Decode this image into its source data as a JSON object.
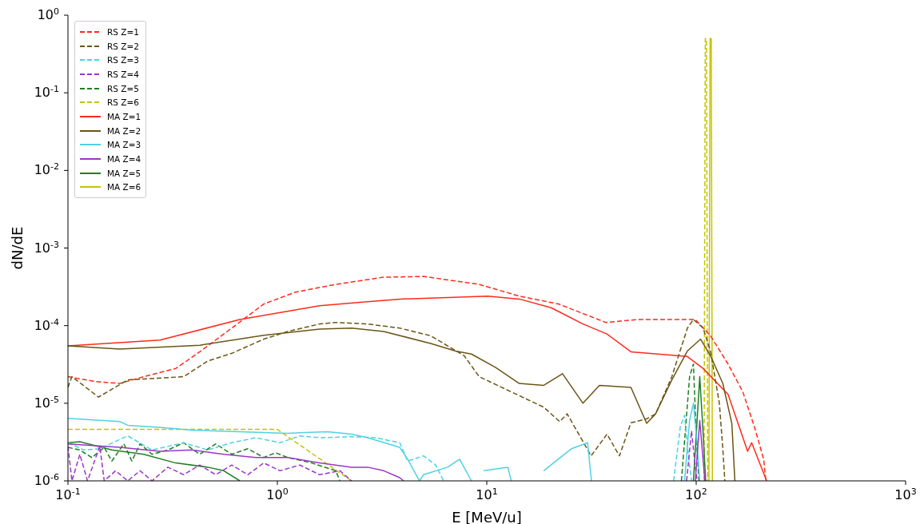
{
  "chart_data": {
    "type": "line",
    "xlabel": "E [MeV/u]",
    "ylabel": "dN/dE",
    "log": "xy",
    "grid": false,
    "legend": "top left",
    "marker": "none",
    "xlim": [
      0.1,
      1000
    ],
    "ylim": [
      1e-06,
      1
    ],
    "xticks": [
      {
        "value": 0.1,
        "label": "10$^{-1}$"
      },
      {
        "value": 1,
        "label": "10$^{0}$"
      },
      {
        "value": 10,
        "label": "10$^{1}$"
      },
      {
        "value": 100,
        "label": "10$^{2}$"
      },
      {
        "value": 1000,
        "label": "10$^{3}$"
      }
    ],
    "yticks": [
      {
        "value": 1e-06,
        "label": "10$^{-6}$"
      },
      {
        "value": 1e-05,
        "label": "10$^{-5}$"
      },
      {
        "value": 0.0001,
        "label": "10$^{-4}$"
      },
      {
        "value": 0.001,
        "label": "10$^{-3}$"
      },
      {
        "value": 0.01,
        "label": "10$^{-2}$"
      },
      {
        "value": 0.1,
        "label": "10$^{-1}$"
      },
      {
        "value": 1,
        "label": "10$^{0}$"
      }
    ],
    "series": [
      {
        "name": "RS Z=1",
        "color": "#ff2a1a",
        "line_style": "dashed",
        "x": [
          0.1,
          0.136,
          0.177,
          0.23,
          0.327,
          0.426,
          0.606,
          0.861,
          1.22,
          1.9,
          3.2,
          5.0,
          9.2,
          14.3,
          22,
          37,
          53,
          99,
          117,
          142,
          167,
          190,
          210,
          215
        ],
        "values": [
          2.2e-05,
          1.9e-05,
          1.8e-05,
          2.2e-05,
          2.8e-05,
          4.6e-05,
          9.3e-05,
          0.00019,
          0.00027,
          0.00034,
          0.00042,
          0.00043,
          0.00034,
          0.00024,
          0.00019,
          0.00011,
          0.00012,
          0.00012,
          7.4e-05,
          3.2e-05,
          1.4e-05,
          4.9e-06,
          1.9e-06,
          1e-06
        ]
      },
      {
        "name": "RS Z=2",
        "color": "#6b5514",
        "line_style": "dashed",
        "x": [
          0.1,
          0.1045,
          0.14,
          0.193,
          0.357,
          0.465,
          0.606,
          0.861,
          1.12,
          1.59,
          1.9,
          2.7,
          3.84,
          5.4,
          7.8,
          9.2,
          13.1,
          18.7,
          22.3,
          24.2,
          31.5,
          37.5,
          43,
          48.8,
          58,
          64,
          76.5,
          90.8,
          97,
          108,
          117,
          129,
          134,
          137
        ],
        "values": [
          1.6e-05,
          2.2e-05,
          1.2e-05,
          2e-05,
          2.2e-05,
          3.5e-05,
          4.4e-05,
          6.7e-05,
          8.4e-05,
          0.000105,
          0.00011,
          0.000105,
          9.3e-05,
          7.4e-05,
          4.1e-05,
          2.2e-05,
          1.4e-05,
          8.9e-06,
          5.8e-06,
          7.3e-06,
          2.1e-06,
          4e-06,
          2.1e-06,
          5.6e-06,
          6.3e-06,
          7.3e-06,
          2.2e-05,
          9.3e-05,
          0.00012,
          9.3e-05,
          4.7e-05,
          1e-05,
          2.6e-06,
          1e-06
        ]
      },
      {
        "name": "RS Z=3",
        "color": "#4fd2e2",
        "line_style": "dashed",
        "x": [
          0.1,
          0.119,
          0.142,
          0.193,
          0.252,
          0.357,
          0.465,
          0.606,
          0.789,
          1.03,
          1.28,
          1.59,
          2.26,
          2.95,
          3.84,
          4.19,
          4.99,
          5.7,
          6.22,
          30,
          78,
          84,
          88,
          92,
          95
        ],
        "values": [
          3.1e-06,
          2.5e-06,
          2.6e-06,
          3.8e-06,
          2.5e-06,
          3.1e-06,
          2.5e-06,
          3.1e-06,
          3.6e-06,
          3.1e-06,
          3.8e-06,
          3.6e-06,
          3.7e-06,
          3.6e-06,
          3.1e-06,
          1.8e-06,
          2.1e-06,
          1.6e-06,
          1e-06,
          null,
          1e-06,
          5e-06,
          7e-06,
          2e-06,
          1e-06
        ]
      },
      {
        "name": "RS Z=4",
        "color": "#9a35c8",
        "line_style": "dashed",
        "x": [
          0.1,
          0.1045,
          0.114,
          0.124,
          0.142,
          0.149,
          0.169,
          0.193,
          0.221,
          0.252,
          0.3,
          0.357,
          0.426,
          0.508,
          0.606,
          0.722,
          0.861,
          1.03,
          1.28,
          1.59,
          1.99,
          2.26,
          30,
          90,
          95,
          99,
          101
        ],
        "values": [
          2.8e-06,
          1e-06,
          2.2e-06,
          1e-06,
          2.8e-06,
          1e-06,
          1.35e-06,
          1e-06,
          1.35e-06,
          1e-06,
          1.5e-06,
          1.2e-06,
          1.6e-06,
          1.2e-06,
          1.6e-06,
          1.2e-06,
          1.7e-06,
          1.35e-06,
          1.6e-06,
          1.2e-06,
          1.35e-06,
          1e-06,
          null,
          1e-06,
          4.4e-06,
          1.5e-06,
          1e-06
        ]
      },
      {
        "name": "RS Z=5",
        "color": "#1f7f1f",
        "line_style": "dashed",
        "x": [
          0.1,
          0.114,
          0.13,
          0.149,
          0.162,
          0.185,
          0.202,
          0.221,
          0.252,
          0.3,
          0.357,
          0.426,
          0.508,
          0.606,
          0.722,
          0.861,
          0.98,
          1.12,
          1.46,
          1.9,
          1.99,
          30,
          85,
          93,
          97,
          100,
          103
        ],
        "values": [
          2.7e-06,
          2.5e-06,
          2e-06,
          2.7e-06,
          1.8e-06,
          3e-06,
          1.8e-06,
          3e-06,
          2.2e-06,
          2.5e-06,
          3.1e-06,
          2.2e-06,
          3e-06,
          2.2e-06,
          2.6e-06,
          2e-06,
          2.3e-06,
          2e-06,
          1.7e-06,
          1.35e-06,
          1e-06,
          null,
          1e-06,
          2.2e-05,
          3.2e-05,
          4e-06,
          1e-06
        ]
      },
      {
        "name": "RS Z=6",
        "color": "#c4c400",
        "line_style": "dashed",
        "x": [
          0.1,
          1,
          2.26,
          30,
          109,
          110.5,
          112,
          113.5
        ],
        "values": [
          4.6e-06,
          4.6e-06,
          1e-06,
          null,
          1e-06,
          0.5,
          0.5,
          1e-06
        ]
      },
      {
        "name": "MA Z=1",
        "color": "#ff2a1a",
        "line_style": "solid",
        "x": [
          0.1,
          0.275,
          0.662,
          1.59,
          2.47,
          3.85,
          6.5,
          10.1,
          14.3,
          20.3,
          28.8,
          37.5,
          48.8,
          90.7,
          108,
          142,
          176,
          184,
          217
        ],
        "values": [
          5.5e-05,
          6.5e-05,
          0.00012,
          0.00018,
          0.0002,
          0.00022,
          0.00023,
          0.00024,
          0.00022,
          0.00017,
          0.000105,
          7.8e-05,
          4.6e-05,
          4e-05,
          2.8e-05,
          1.3e-05,
          2.4e-06,
          3.1e-06,
          1e-06
        ]
      },
      {
        "name": "MA Z=2",
        "color": "#6b5514",
        "line_style": "solid",
        "x": [
          0.1,
          0.177,
          0.426,
          0.861,
          1.59,
          2.26,
          3.22,
          5.4,
          7.1,
          8.45,
          11,
          14.3,
          18.7,
          23,
          28.8,
          34.5,
          48.8,
          58,
          64,
          76.5,
          90.7,
          105,
          117,
          134,
          148,
          153
        ],
        "values": [
          5.5e-05,
          5e-05,
          5.6e-05,
          7.5e-05,
          9e-05,
          9.3e-05,
          8.4e-05,
          5.9e-05,
          4.7e-05,
          4.3e-05,
          2.9e-05,
          1.8e-05,
          1.7e-05,
          2.4e-05,
          1e-05,
          1.7e-05,
          1.6e-05,
          5.5e-06,
          7.3e-06,
          2e-05,
          4.7e-05,
          6.7e-05,
          4.1e-05,
          1.8e-05,
          5.5e-06,
          1e-06
        ]
      },
      {
        "name": "MA Z=3",
        "color": "#4fd2e2",
        "line_style": "solid",
        "x": [
          0.1,
          0.177,
          0.193,
          0.275,
          0.391,
          0.662,
          1.12,
          1.34,
          1.74,
          2.26,
          2.7,
          3.84,
          4.19,
          4.77,
          4.99,
          6.5,
          7.42,
          8.45,
          9,
          9.66,
          12.6,
          13.1,
          15,
          18.7,
          25.4,
          30.3,
          31.6,
          50,
          88,
          93,
          97,
          101,
          104
        ],
        "values": [
          6.4e-06,
          5.8e-06,
          5.2e-06,
          4.9e-06,
          4.5e-06,
          4.3e-06,
          4.1e-06,
          4.2e-06,
          4.3e-06,
          4e-06,
          3.6e-06,
          2.7e-06,
          1.9e-06,
          1e-06,
          1.2e-06,
          1.5e-06,
          1.9e-06,
          1e-06,
          null,
          1.35e-06,
          1.5e-06,
          1e-06,
          null,
          1.35e-06,
          2.6e-06,
          3.1e-06,
          1e-06,
          null,
          1e-06,
          6e-06,
          1e-05,
          3e-06,
          1e-06
        ]
      },
      {
        "name": "MA Z=4",
        "color": "#9a35c8",
        "line_style": "solid",
        "x": [
          0.1,
          0.177,
          0.275,
          0.391,
          0.555,
          0.789,
          1.12,
          1.59,
          2.26,
          2.7,
          3.22,
          3.84,
          4.01,
          30,
          99,
          104,
          110
        ],
        "values": [
          3e-06,
          2.7e-06,
          2.4e-06,
          2.5e-06,
          2.2e-06,
          2e-06,
          2e-06,
          1.7e-06,
          1.5e-06,
          1.5e-06,
          1.35e-06,
          1.1e-06,
          1e-06,
          null,
          1e-06,
          6e-06,
          1e-06
        ]
      },
      {
        "name": "MA Z=5",
        "color": "#1f7f1f",
        "line_style": "solid",
        "x": [
          0.1,
          0.114,
          0.162,
          0.23,
          0.327,
          0.465,
          0.555,
          0.662,
          30,
          97,
          104,
          108,
          111
        ],
        "values": [
          3.1e-06,
          3.2e-06,
          2.5e-06,
          2.2e-06,
          1.7e-06,
          1.5e-06,
          1.35e-06,
          1e-06,
          null,
          1e-06,
          2.2e-05,
          4e-06,
          1e-06
        ]
      },
      {
        "name": "MA Z=6",
        "color": "#c4c400",
        "line_style": "solid",
        "x": [
          115,
          116.5,
          118,
          119.5
        ],
        "values": [
          1e-06,
          0.5,
          0.5,
          1e-06
        ]
      }
    ]
  }
}
